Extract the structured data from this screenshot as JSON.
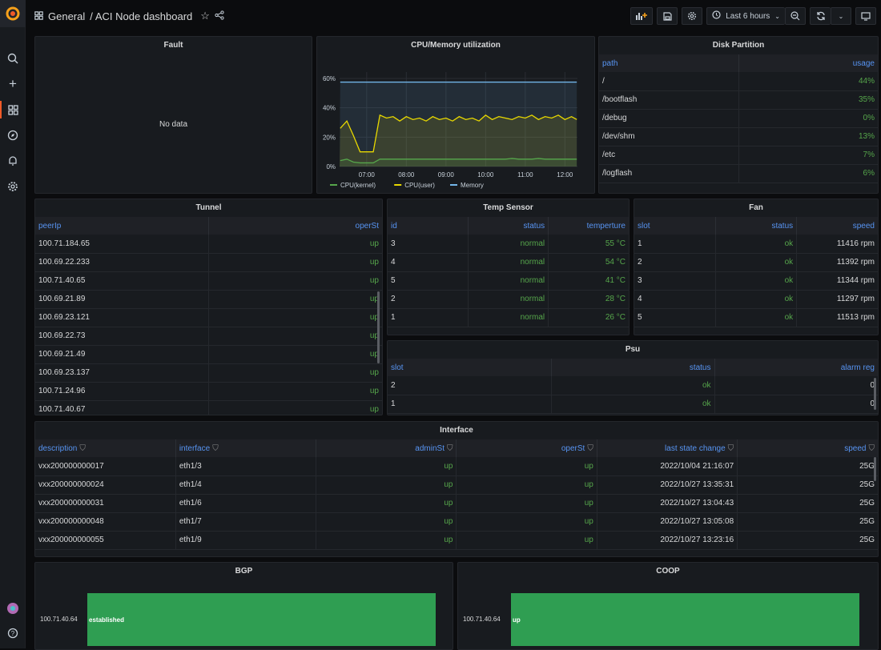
{
  "header": {
    "breadcrumb_folder": "General",
    "breadcrumb_sep": "/",
    "title": "ACI Node dashboard",
    "time_range": "Last 6 hours"
  },
  "sidebar": {
    "items": [
      "search-icon",
      "plus-icon",
      "dashboards-icon",
      "explore-icon",
      "alerting-icon",
      "configuration-icon"
    ],
    "bottom": [
      "user-avatar",
      "help-icon"
    ]
  },
  "colors": {
    "accent": "#f05a28",
    "ok_green": "#56a64b",
    "header_blue": "#5794f2",
    "bar_green": "#2f9e52",
    "cpu_kernel": "#56a64b",
    "cpu_user": "#e8d800",
    "memory": "#73b6e9"
  },
  "fault": {
    "title": "Fault",
    "message": "No data"
  },
  "cpu": {
    "title": "CPU/Memory utilization"
  },
  "chart_data": {
    "type": "line",
    "title": "CPU/Memory utilization",
    "ylim": [
      0,
      60
    ],
    "yticks": [
      "0%",
      "20%",
      "40%",
      "60%"
    ],
    "xticks": [
      "07:00",
      "08:00",
      "09:00",
      "10:00",
      "11:00",
      "12:00"
    ],
    "x": [
      "06:20",
      "06:30",
      "06:40",
      "06:50",
      "07:00",
      "07:10",
      "07:20",
      "07:30",
      "07:40",
      "07:50",
      "08:00",
      "08:10",
      "08:20",
      "08:30",
      "08:40",
      "08:50",
      "09:00",
      "09:10",
      "09:20",
      "09:30",
      "09:40",
      "09:50",
      "10:00",
      "10:10",
      "10:20",
      "10:30",
      "10:40",
      "10:50",
      "11:00",
      "11:10",
      "11:20",
      "11:30",
      "11:40",
      "11:50",
      "12:00",
      "12:10",
      "12:18"
    ],
    "series": [
      {
        "name": "CPU(kernel)",
        "color": "#56a64b",
        "values": [
          4,
          5,
          3,
          2.5,
          2.5,
          2.5,
          5,
          5,
          5,
          5,
          5,
          5,
          5,
          5,
          5,
          5,
          5,
          5,
          5,
          5,
          5,
          5,
          5,
          5,
          5,
          5,
          5.5,
          5,
          5,
          5,
          5.5,
          5,
          5,
          5,
          5,
          5,
          5
        ]
      },
      {
        "name": "CPU(user)",
        "color": "#e8d800",
        "values": [
          26,
          31,
          21,
          10,
          10,
          10,
          35,
          33,
          34,
          31,
          34,
          32,
          33,
          31,
          34,
          32,
          33,
          31,
          34,
          32,
          33,
          31,
          35,
          32,
          34,
          33,
          32,
          34,
          33,
          35,
          32,
          34,
          33,
          35,
          32,
          34,
          32
        ]
      },
      {
        "name": "Memory",
        "color": "#73b6e9",
        "values": [
          57.5,
          57.5,
          57.5,
          57.5,
          57.5,
          57.5,
          57.5,
          57.5,
          57.5,
          57.5,
          57.5,
          57.5,
          57.5,
          57.5,
          57.5,
          57.5,
          57.5,
          57.5,
          57.5,
          57.5,
          57.5,
          57.5,
          57.5,
          57.5,
          57.5,
          57.5,
          57.5,
          57.5,
          57.5,
          57.5,
          57.5,
          57.5,
          57.5,
          57.5,
          57.5,
          57.5,
          57.5
        ]
      }
    ],
    "legend": "bottom",
    "grid": true
  },
  "disk": {
    "title": "Disk Partition",
    "columns": [
      {
        "label": "path",
        "align": "l"
      },
      {
        "label": "usage",
        "align": "r",
        "green": true
      }
    ],
    "rows": [
      [
        "/",
        "44%"
      ],
      [
        "/bootflash",
        "35%"
      ],
      [
        "/debug",
        "0%"
      ],
      [
        "/dev/shm",
        "13%"
      ],
      [
        "/etc",
        "7%"
      ],
      [
        "/logflash",
        "6%"
      ]
    ]
  },
  "tunnel": {
    "title": "Tunnel",
    "columns": [
      {
        "label": "peerIp",
        "align": "l"
      },
      {
        "label": "operSt",
        "align": "r",
        "green": true
      }
    ],
    "rows": [
      [
        "100.71.184.65",
        "up"
      ],
      [
        "100.69.22.233",
        "up"
      ],
      [
        "100.71.40.65",
        "up"
      ],
      [
        "100.69.21.89",
        "up"
      ],
      [
        "100.69.23.121",
        "up"
      ],
      [
        "100.69.22.73",
        "up"
      ],
      [
        "100.69.21.49",
        "up"
      ],
      [
        "100.69.23.137",
        "up"
      ],
      [
        "100.71.24.96",
        "up"
      ],
      [
        "100.71.40.67",
        "up"
      ]
    ]
  },
  "temp": {
    "title": "Temp Sensor",
    "columns": [
      {
        "label": "id",
        "align": "l"
      },
      {
        "label": "status",
        "align": "r",
        "green": true
      },
      {
        "label": "temperture",
        "align": "r",
        "green": true
      }
    ],
    "rows": [
      [
        "3",
        "normal",
        "55 °C"
      ],
      [
        "4",
        "normal",
        "54 °C"
      ],
      [
        "5",
        "normal",
        "41 °C"
      ],
      [
        "2",
        "normal",
        "28 °C"
      ],
      [
        "1",
        "normal",
        "26 °C"
      ]
    ]
  },
  "fan": {
    "title": "Fan",
    "columns": [
      {
        "label": "slot",
        "align": "l"
      },
      {
        "label": "status",
        "align": "r",
        "green": true
      },
      {
        "label": "speed",
        "align": "r"
      }
    ],
    "rows": [
      [
        "1",
        "ok",
        "11416 rpm"
      ],
      [
        "2",
        "ok",
        "11392 rpm"
      ],
      [
        "3",
        "ok",
        "11344 rpm"
      ],
      [
        "4",
        "ok",
        "11297 rpm"
      ],
      [
        "5",
        "ok",
        "11513 rpm"
      ]
    ]
  },
  "psu": {
    "title": "Psu",
    "columns": [
      {
        "label": "slot",
        "align": "l"
      },
      {
        "label": "status",
        "align": "r",
        "green": true
      },
      {
        "label": "alarm reg",
        "align": "r"
      }
    ],
    "rows": [
      [
        "2",
        "ok",
        "0"
      ],
      [
        "1",
        "ok",
        "0"
      ]
    ]
  },
  "iface": {
    "title": "Interface",
    "filter": true,
    "columns": [
      {
        "label": "description",
        "align": "l"
      },
      {
        "label": "interface",
        "align": "l"
      },
      {
        "label": "adminSt",
        "align": "r",
        "green": true
      },
      {
        "label": "operSt",
        "align": "r",
        "green": true
      },
      {
        "label": "last state change",
        "align": "r"
      },
      {
        "label": "speed",
        "align": "r"
      }
    ],
    "rows": [
      [
        "vxx200000000017",
        "eth1/3",
        "up",
        "up",
        "2022/10/04 21:16:07",
        "25G"
      ],
      [
        "vxx200000000024",
        "eth1/4",
        "up",
        "up",
        "2022/10/27 13:35:31",
        "25G"
      ],
      [
        "vxx200000000031",
        "eth1/6",
        "up",
        "up",
        "2022/10/27 13:04:43",
        "25G"
      ],
      [
        "vxx200000000048",
        "eth1/7",
        "up",
        "up",
        "2022/10/27 13:05:08",
        "25G"
      ],
      [
        "vxx200000000055",
        "eth1/9",
        "up",
        "up",
        "2022/10/27 13:23:16",
        "25G"
      ]
    ]
  },
  "bgp": {
    "title": "BGP",
    "label": "100.71.40.64",
    "value": "established"
  },
  "coop": {
    "title": "COOP",
    "label": "100.71.40.64",
    "value": "up"
  }
}
